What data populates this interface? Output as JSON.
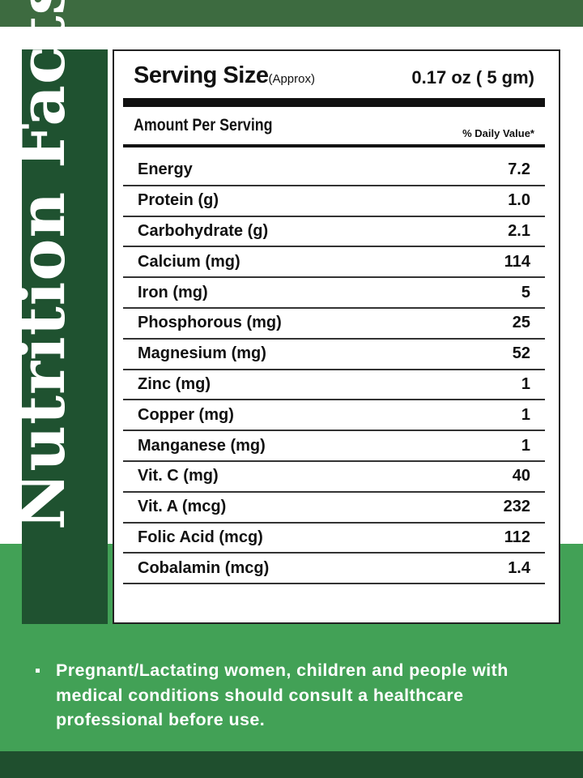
{
  "side_title": "Nutrition Facts",
  "serving": {
    "label": "Serving Size",
    "qualifier": "(Approx)",
    "value": "0.17 oz ( 5 gm)"
  },
  "header": {
    "amount_label": "Amount Per Serving",
    "daily_value_label": "% Daily Value*"
  },
  "nutrients": [
    {
      "name": "Energy",
      "value": "7.2"
    },
    {
      "name": "Protein (g)",
      "value": "1.0"
    },
    {
      "name": "Carbohydrate (g)",
      "value": "2.1"
    },
    {
      "name": "Calcium (mg)",
      "value": "114"
    },
    {
      "name": "Iron (mg)",
      "value": "5"
    },
    {
      "name": "Phosphorous (mg)",
      "value": "25"
    },
    {
      "name": "Magnesium (mg)",
      "value": "52"
    },
    {
      "name": "Zinc (mg)",
      "value": "1"
    },
    {
      "name": "Copper (mg)",
      "value": "1"
    },
    {
      "name": "Manganese (mg)",
      "value": "1"
    },
    {
      "name": "Vit. C (mg)",
      "value": "40"
    },
    {
      "name": "Vit. A (mcg)",
      "value": "232"
    },
    {
      "name": "Folic Acid (mcg)",
      "value": "112"
    },
    {
      "name": "Cobalamin (mcg)",
      "value": "1.4"
    }
  ],
  "note": "Pregnant/Lactating women, children and people with medical conditions should consult a healthcare professional before use.",
  "colors": {
    "dark_green": "#1f5230",
    "top_bar": "#3d6b40",
    "green": "#42a156"
  }
}
